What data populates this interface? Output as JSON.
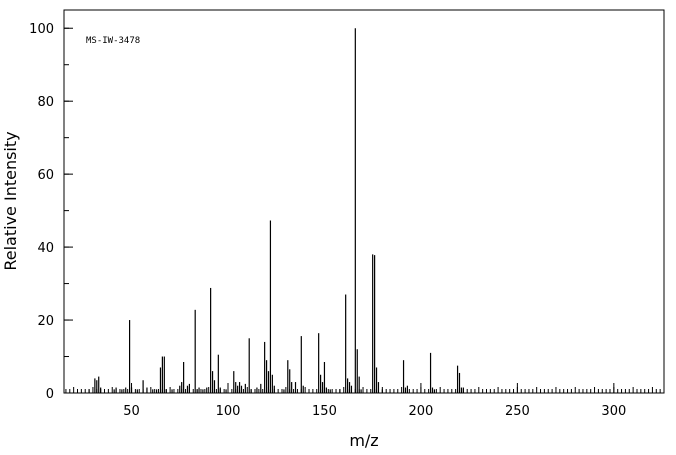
{
  "chart_data": {
    "type": "stem",
    "annotation": "MS-IW-3478",
    "xlabel": "m/z",
    "ylabel": "Relative Intensity",
    "color": "#000000",
    "x": [
      28,
      31,
      32,
      33,
      34,
      41,
      42,
      45,
      47,
      49,
      50,
      53,
      56,
      58,
      61,
      63,
      65,
      66,
      67,
      68,
      71,
      75,
      76,
      77,
      79,
      80,
      83,
      84,
      85,
      87,
      89,
      91,
      92,
      93,
      95,
      96,
      99,
      103,
      104,
      105,
      106,
      107,
      109,
      111,
      112,
      115,
      117,
      119,
      120,
      121,
      122,
      123,
      124,
      129,
      131,
      132,
      133,
      135,
      138,
      139,
      147,
      148,
      149,
      150,
      151,
      153,
      158,
      161,
      162,
      163,
      164,
      166,
      167,
      168,
      169,
      175,
      176,
      177,
      178,
      180,
      191,
      192,
      193,
      205,
      206,
      207,
      219,
      220,
      221,
      222
    ],
    "values": [
      1,
      4,
      3.5,
      4.5,
      1.5,
      1,
      1.5,
      1,
      1.5,
      20,
      1.5,
      1,
      3.5,
      1.5,
      1,
      1,
      7,
      10,
      10,
      1,
      1,
      2,
      3,
      8.5,
      2,
      2.5,
      22.8,
      1,
      1.5,
      1,
      1.5,
      28.8,
      6,
      3.5,
      10.5,
      1.5,
      1,
      6,
      3,
      2,
      3,
      2,
      2.5,
      15,
      1,
      1.5,
      2.5,
      14,
      9,
      6,
      47.3,
      5,
      2,
      1,
      9,
      6.5,
      3,
      3,
      15.6,
      2,
      16.4,
      5,
      3,
      8.5,
      1.5,
      1,
      1,
      27,
      4,
      3,
      2,
      100,
      12,
      4.5,
      1,
      38,
      37.8,
      7,
      3,
      1,
      9,
      1.5,
      2,
      11,
      1.5,
      1,
      7.5,
      5.5,
      1.5,
      1.5
    ],
    "xlim": [
      15,
      326
    ],
    "ylim": [
      0,
      105
    ],
    "xticks": [
      50,
      100,
      150,
      200,
      250,
      300
    ],
    "yticks": [
      0,
      20,
      40,
      60,
      80,
      100
    ],
    "x_minor_step": 2,
    "y_minor_step": 10
  }
}
